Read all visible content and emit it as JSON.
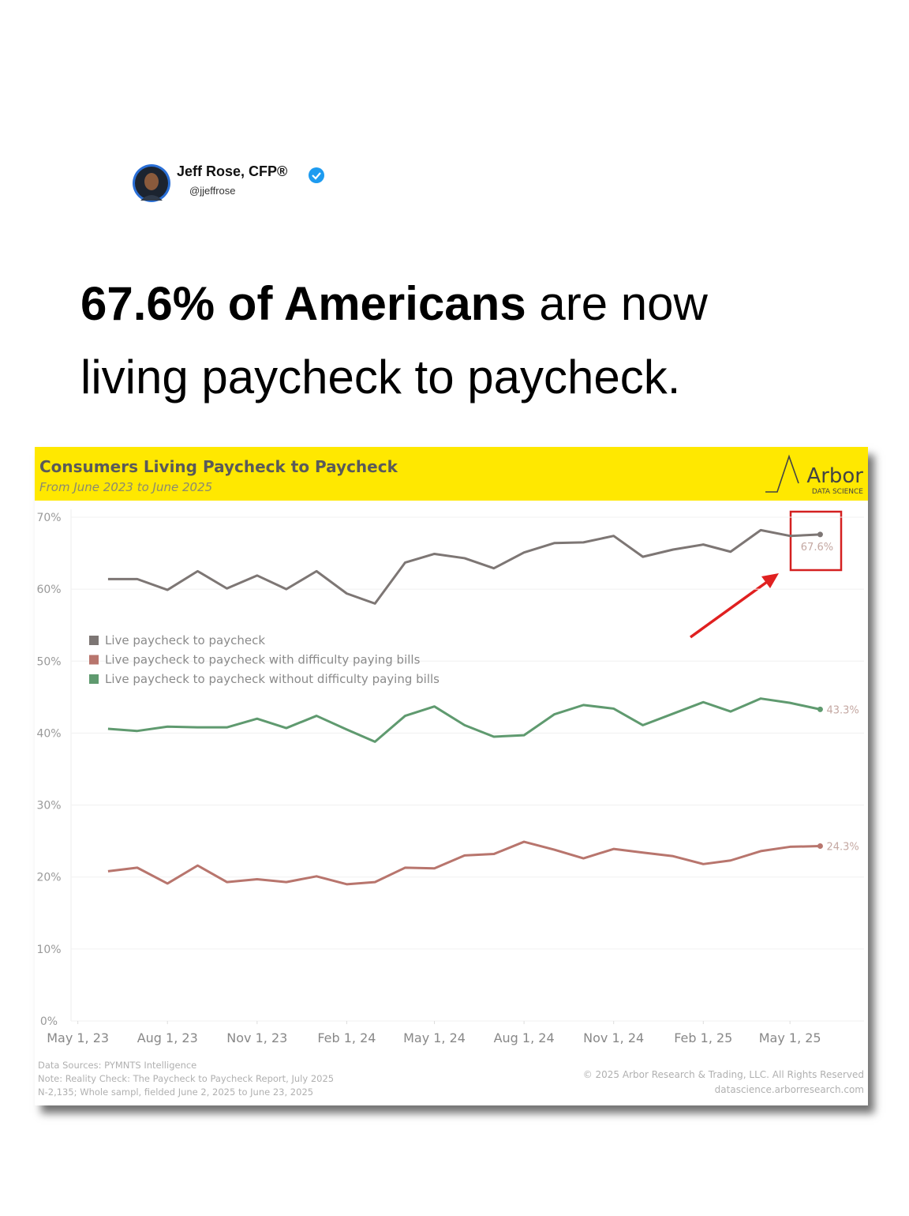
{
  "post": {
    "author": "Jeff Rose, CFP®",
    "handle": "@jjeffrose",
    "headline_bold": "67.6% of Americans",
    "headline_rest": " are now living paycheck to paycheck."
  },
  "chart_data": {
    "type": "line",
    "title": "Consumers Living Paycheck to Paycheck",
    "subtitle": "From June 2023 to June 2025",
    "logo": "Arbor",
    "logo_sub": "DATA SCIENCE",
    "x": [
      "2023-06-01",
      "2023-07-01",
      "2023-08-01",
      "2023-09-01",
      "2023-10-01",
      "2023-11-01",
      "2023-12-01",
      "2024-01-01",
      "2024-02-01",
      "2024-03-01",
      "2024-04-01",
      "2024-05-01",
      "2024-06-01",
      "2024-07-01",
      "2024-08-01",
      "2024-09-01",
      "2024-10-01",
      "2024-11-01",
      "2024-12-01",
      "2025-01-01",
      "2025-02-01",
      "2025-03-01",
      "2025-04-01",
      "2025-05-01",
      "2025-06-01"
    ],
    "xlim": [
      "2023-04-24",
      "2025-07-16"
    ],
    "xticks": [
      {
        "value": "2023-05-01",
        "label": "May 1, 23"
      },
      {
        "value": "2023-08-01",
        "label": "Aug 1, 23"
      },
      {
        "value": "2023-11-01",
        "label": "Nov 1, 23"
      },
      {
        "value": "2024-02-01",
        "label": "Feb 1, 24"
      },
      {
        "value": "2024-05-01",
        "label": "May 1, 24"
      },
      {
        "value": "2024-08-01",
        "label": "Aug 1, 24"
      },
      {
        "value": "2024-11-01",
        "label": "Nov 1, 24"
      },
      {
        "value": "2025-02-01",
        "label": "Feb 1, 25"
      },
      {
        "value": "2025-05-01",
        "label": "May 1, 25"
      }
    ],
    "ylim": [
      0,
      70
    ],
    "yticks": [
      {
        "value": 0,
        "label": "0%"
      },
      {
        "value": 10,
        "label": "10%"
      },
      {
        "value": 20,
        "label": "20%"
      },
      {
        "value": 30,
        "label": "30%"
      },
      {
        "value": 40,
        "label": "40%"
      },
      {
        "value": 50,
        "label": "50%"
      },
      {
        "value": 60,
        "label": "60%"
      },
      {
        "value": 70,
        "label": "70%"
      }
    ],
    "grid": true,
    "legend": "upper left",
    "series": [
      {
        "name": "Live paycheck to paycheck",
        "color": "#7d7674",
        "values": [
          61.4,
          61.4,
          59.9,
          62.5,
          60.1,
          61.9,
          60.0,
          62.5,
          59.4,
          58.0,
          63.7,
          64.9,
          64.3,
          62.9,
          65.1,
          66.4,
          66.5,
          67.4,
          64.5,
          65.5,
          66.2,
          65.2,
          68.2,
          67.4,
          67.6
        ],
        "value_labels": [
          null,
          null,
          null,
          null,
          null,
          null,
          null,
          null,
          null,
          null,
          null,
          null,
          null,
          null,
          null,
          null,
          null,
          null,
          null,
          null,
          null,
          null,
          null,
          null,
          "67.6%"
        ]
      },
      {
        "name": "Live paycheck to paycheck with difficulty paying bills",
        "color": "#b8756d",
        "values": [
          20.8,
          21.3,
          19.1,
          21.6,
          19.3,
          19.7,
          19.3,
          20.1,
          19.0,
          19.3,
          21.3,
          21.2,
          23.0,
          23.2,
          24.9,
          23.8,
          22.6,
          23.9,
          23.4,
          22.9,
          21.8,
          22.3,
          23.6,
          24.2,
          24.3
        ],
        "value_labels": [
          null,
          null,
          null,
          null,
          null,
          null,
          null,
          null,
          null,
          null,
          null,
          null,
          null,
          null,
          null,
          null,
          null,
          null,
          null,
          null,
          null,
          null,
          null,
          null,
          "24.3%"
        ]
      },
      {
        "name": "Live paycheck to paycheck without difficulty paying bills",
        "color": "#5f9a6f",
        "values": [
          40.6,
          40.3,
          40.9,
          40.8,
          40.8,
          42.0,
          40.7,
          42.4,
          40.5,
          38.8,
          42.4,
          43.7,
          41.1,
          39.5,
          39.7,
          42.6,
          43.9,
          43.4,
          41.1,
          42.7,
          44.3,
          43.0,
          44.8,
          44.2,
          43.3
        ],
        "value_labels": [
          null,
          null,
          null,
          null,
          null,
          null,
          null,
          null,
          null,
          null,
          null,
          null,
          null,
          null,
          null,
          null,
          null,
          null,
          null,
          null,
          null,
          null,
          null,
          null,
          "43.3%"
        ]
      }
    ],
    "sources": [
      "Data Sources: PYMNTS Intelligence",
      "Note: Reality Check: The Paycheck to Paycheck Report, July 2025",
      "N-2,135; Whole sampl, fielded June 2, 2025 to June 23, 2025"
    ],
    "copyright": [
      "© 2025 Arbor Research & Trading, LLC. All Rights Reserved",
      "datascience.arborresearch.com"
    ]
  }
}
